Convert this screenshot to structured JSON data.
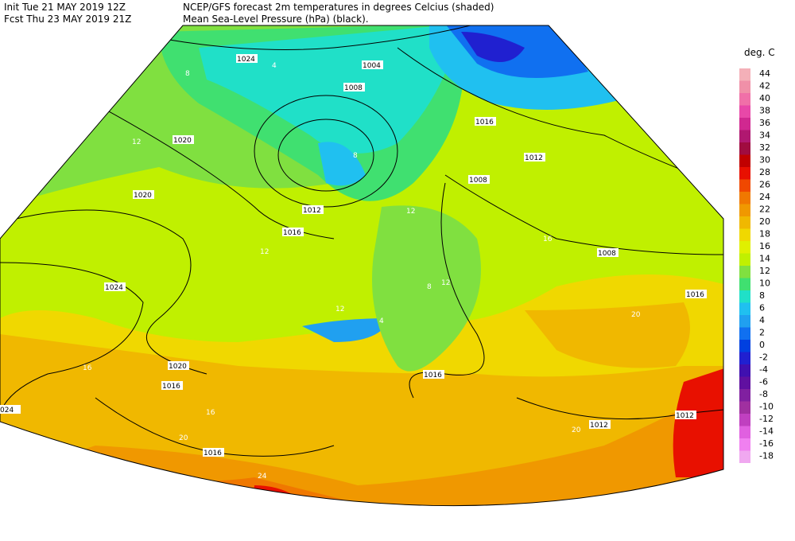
{
  "header": {
    "init": "Init  Tue 21 MAY 2019 12Z",
    "fcst": "Fcst Thu 23 MAY 2019 21Z",
    "title1": "NCEP/GFS forecast 2m temperatures in degrees Celcius (shaded)",
    "title2": "Mean Sea-Level Pressure (hPa) (black)."
  },
  "legend": {
    "title": "deg. C",
    "levels": [
      44,
      42,
      40,
      38,
      36,
      34,
      32,
      30,
      28,
      26,
      24,
      22,
      20,
      18,
      16,
      14,
      12,
      10,
      8,
      6,
      4,
      2,
      0,
      -2,
      -4,
      -6,
      -8,
      -10,
      -12,
      -14,
      -16,
      -18
    ],
    "colors": [
      "#f4b0b8",
      "#f090a8",
      "#f070a8",
      "#e848a8",
      "#d02890",
      "#b01870",
      "#a00c40",
      "#c00000",
      "#e81000",
      "#f04800",
      "#f07800",
      "#f09800",
      "#f0b800",
      "#f0d800",
      "#e0f000",
      "#c0f000",
      "#80e040",
      "#40e070",
      "#20e0c8",
      "#20c0f0",
      "#20a0f0",
      "#1070f0",
      "#0040e0",
      "#2020d0",
      "#4010b0",
      "#6010a0",
      "#8020a0",
      "#a030a0",
      "#c040c0",
      "#e060e0",
      "#f080f0",
      "#f0a8f0"
    ]
  },
  "isobar_labels": [
    "1024",
    "1020",
    "1020",
    "1024",
    "1020",
    "1016",
    "024",
    "1016",
    "1008",
    "1012",
    "1016",
    "1004",
    "1016",
    "1012",
    "1008",
    "1008",
    "1016",
    "1016",
    "1012",
    "1012"
  ],
  "temperature_labels": [
    "8",
    "4",
    "12",
    "8",
    "12",
    "16",
    "12",
    "12",
    "8",
    "4",
    "12",
    "20",
    "16",
    "20",
    "24",
    "24",
    "20",
    "24",
    "20",
    "16"
  ]
}
